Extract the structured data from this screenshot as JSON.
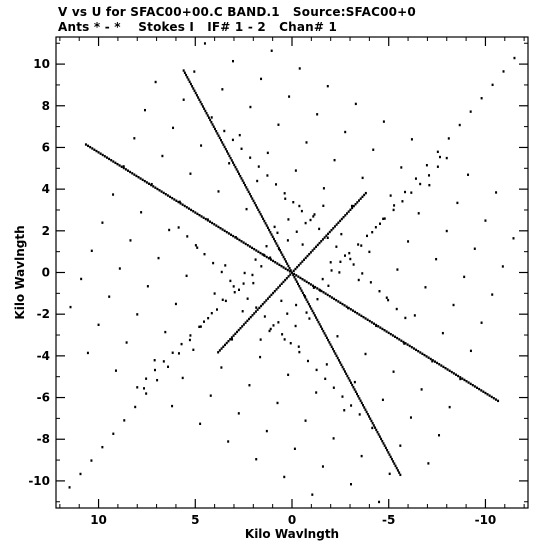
{
  "chart_data": {
    "type": "scatter",
    "title": "V vs U for SFAC00+00.C BAND.1   Source:SFAC00+0",
    "subtitle": "Ants * - *    Stokes I   IF# 1 - 2   Chan# 1",
    "xlabel": "Kilo Wavlngth",
    "ylabel": "Kilo Wavlngth",
    "xlim": [
      12.2,
      -12.2
    ],
    "ylim": [
      -11.3,
      11.3
    ],
    "x_reversed": true,
    "xticks": [
      10,
      5,
      0,
      -5,
      -10
    ],
    "xtick_labels": [
      "10",
      "5",
      "0",
      "-5",
      "-10"
    ],
    "yticks": [
      10,
      8,
      6,
      4,
      2,
      0,
      -2,
      -4,
      -6,
      -8,
      -10
    ],
    "ytick_labels": [
      "10",
      "8",
      "6",
      "4",
      "2",
      "0",
      "-2",
      "-4",
      "-6",
      "-8",
      "-10"
    ],
    "grid": false,
    "marker_color": "#000000",
    "pattern": {
      "description_points": "uv coverage: symmetric radial tracks of points",
      "arms": [
        {
          "angle_deg": 60,
          "r_max": 11.2
        },
        {
          "angle_deg": 240,
          "r_max": 11.2
        },
        {
          "angle_deg": 135,
          "r_max": 5.4
        },
        {
          "angle_deg": 315,
          "r_max": 5.4
        },
        {
          "angle_deg": 30,
          "r_max": 12.3
        },
        {
          "angle_deg": 210,
          "r_max": 12.3
        }
      ],
      "tracks": [
        {
          "anchor": [
            3.5,
            6.8
          ],
          "dir": [
            -0.72,
            -0.69
          ],
          "len": 13
        },
        {
          "anchor": [
            -3.5,
            -6.8
          ],
          "dir": [
            0.72,
            0.69
          ],
          "len": 13
        },
        {
          "anchor": [
            -8.0,
            5.5
          ],
          "dir": [
            0.74,
            -0.67
          ],
          "len": 13
        },
        {
          "anchor": [
            8.0,
            -5.5
          ],
          "dir": [
            -0.74,
            0.67
          ],
          "len": 13
        },
        {
          "anchor": [
            -11.5,
            10.3
          ],
          "dir": [
            0.66,
            -0.75
          ],
          "len": 18
        },
        {
          "anchor": [
            11.5,
            -10.3
          ],
          "dir": [
            -0.66,
            0.75
          ],
          "len": 18
        }
      ],
      "points_per_track": 22
    }
  }
}
